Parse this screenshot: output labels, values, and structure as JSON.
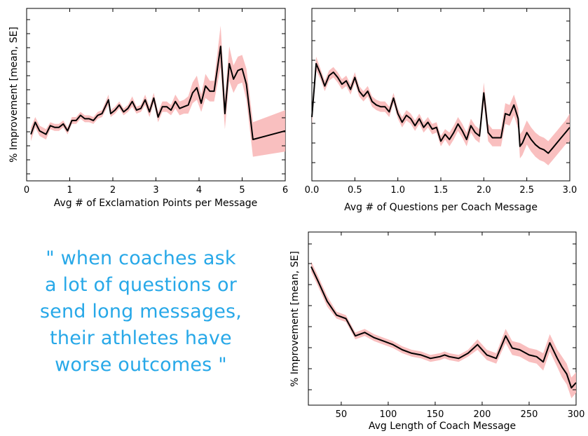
{
  "quote": {
    "lines": [
      "\" when coaches ask",
      "a lot of questions or",
      "send long messages,",
      "their athletes have",
      "worse outcomes \""
    ],
    "color": "#27a8e8"
  },
  "chart_data": [
    {
      "type": "line",
      "xlabel": "Avg # of Exclamation Points per Message",
      "ylabel": "% Improvement [mean, SE]",
      "xlim": [
        0,
        6
      ],
      "ylim": [
        0,
        1
      ],
      "xticks": [
        "0",
        "1",
        "2",
        "3",
        "4",
        "5",
        "6"
      ],
      "band_color": "#f8b8b8",
      "line_color": "#000000",
      "series": [
        {
          "x": [
            0.1,
            0.2,
            0.3,
            0.45,
            0.55,
            0.65,
            0.75,
            0.85,
            0.95,
            1.05,
            1.15,
            1.25,
            1.35,
            1.45,
            1.55,
            1.65,
            1.75,
            1.9,
            1.95,
            2.05,
            2.15,
            2.25,
            2.35,
            2.45,
            2.55,
            2.65,
            2.75,
            2.85,
            2.95,
            3.05,
            3.15,
            3.25,
            3.35,
            3.45,
            3.55,
            3.65,
            3.75,
            3.85,
            3.95,
            4.05,
            4.15,
            4.25,
            4.35,
            4.5,
            4.6,
            4.7,
            4.8,
            4.9,
            5.0,
            5.1,
            5.25,
            6.0
          ],
          "y": [
            0.27,
            0.34,
            0.29,
            0.27,
            0.32,
            0.31,
            0.31,
            0.33,
            0.29,
            0.35,
            0.35,
            0.38,
            0.36,
            0.36,
            0.35,
            0.38,
            0.39,
            0.47,
            0.39,
            0.41,
            0.44,
            0.4,
            0.42,
            0.46,
            0.41,
            0.42,
            0.47,
            0.4,
            0.48,
            0.37,
            0.43,
            0.43,
            0.41,
            0.46,
            0.42,
            0.43,
            0.44,
            0.51,
            0.54,
            0.45,
            0.55,
            0.52,
            0.52,
            0.78,
            0.39,
            0.68,
            0.59,
            0.64,
            0.65,
            0.56,
            0.24,
            0.29
          ],
          "se": [
            0.04,
            0.03,
            0.03,
            0.03,
            0.02,
            0.02,
            0.02,
            0.02,
            0.02,
            0.02,
            0.02,
            0.02,
            0.02,
            0.02,
            0.02,
            0.02,
            0.02,
            0.03,
            0.02,
            0.02,
            0.02,
            0.02,
            0.02,
            0.03,
            0.02,
            0.02,
            0.03,
            0.03,
            0.03,
            0.03,
            0.03,
            0.03,
            0.03,
            0.04,
            0.04,
            0.04,
            0.05,
            0.06,
            0.07,
            0.05,
            0.07,
            0.06,
            0.06,
            0.12,
            0.09,
            0.1,
            0.08,
            0.08,
            0.08,
            0.09,
            0.1,
            0.12
          ]
        }
      ]
    },
    {
      "type": "line",
      "xlabel": "Avg # of Questions per Coach Message",
      "ylabel": "",
      "xlim": [
        0,
        3.0
      ],
      "ylim": [
        0,
        1
      ],
      "xticks": [
        "0.0",
        "0.5",
        "1.0",
        "1.5",
        "2.0",
        "2.5",
        "3.0"
      ],
      "band_color": "#f8b8b8",
      "line_color": "#000000",
      "series": [
        {
          "x": [
            0.0,
            0.05,
            0.1,
            0.15,
            0.2,
            0.25,
            0.3,
            0.35,
            0.4,
            0.45,
            0.5,
            0.55,
            0.6,
            0.65,
            0.7,
            0.75,
            0.8,
            0.85,
            0.9,
            0.95,
            1.0,
            1.05,
            1.1,
            1.15,
            1.2,
            1.25,
            1.3,
            1.35,
            1.4,
            1.45,
            1.5,
            1.55,
            1.6,
            1.65,
            1.7,
            1.75,
            1.8,
            1.85,
            1.9,
            1.95,
            2.0,
            2.02,
            2.05,
            2.1,
            2.15,
            2.2,
            2.25,
            2.3,
            2.35,
            2.4,
            2.42,
            2.45,
            2.5,
            2.55,
            2.6,
            2.65,
            2.7,
            2.75,
            2.8,
            2.85,
            2.9,
            2.95,
            3.0
          ],
          "y": [
            0.37,
            0.68,
            0.62,
            0.55,
            0.61,
            0.63,
            0.6,
            0.56,
            0.58,
            0.53,
            0.6,
            0.52,
            0.49,
            0.52,
            0.46,
            0.44,
            0.43,
            0.43,
            0.4,
            0.48,
            0.39,
            0.34,
            0.38,
            0.36,
            0.32,
            0.36,
            0.31,
            0.34,
            0.3,
            0.31,
            0.23,
            0.27,
            0.24,
            0.28,
            0.33,
            0.29,
            0.24,
            0.32,
            0.28,
            0.26,
            0.51,
            0.42,
            0.28,
            0.25,
            0.25,
            0.25,
            0.39,
            0.38,
            0.44,
            0.36,
            0.2,
            0.22,
            0.28,
            0.24,
            0.21,
            0.19,
            0.18,
            0.16,
            0.19,
            0.22,
            0.25,
            0.28,
            0.31
          ],
          "se": [
            0.05,
            0.04,
            0.03,
            0.03,
            0.03,
            0.03,
            0.03,
            0.03,
            0.03,
            0.03,
            0.03,
            0.03,
            0.03,
            0.03,
            0.03,
            0.03,
            0.03,
            0.03,
            0.03,
            0.03,
            0.03,
            0.03,
            0.03,
            0.03,
            0.03,
            0.03,
            0.03,
            0.03,
            0.03,
            0.03,
            0.03,
            0.03,
            0.04,
            0.04,
            0.04,
            0.04,
            0.04,
            0.04,
            0.04,
            0.04,
            0.06,
            0.06,
            0.05,
            0.05,
            0.05,
            0.05,
            0.06,
            0.06,
            0.06,
            0.06,
            0.07,
            0.07,
            0.07,
            0.07,
            0.07,
            0.07,
            0.07,
            0.07,
            0.07,
            0.07,
            0.07,
            0.07,
            0.08
          ]
        }
      ]
    },
    {
      "type": "line",
      "xlabel": "Avg Length of Coach Message",
      "ylabel": "% Improvement [mean, SE]",
      "xlim": [
        15,
        300
      ],
      "ylim": [
        0,
        1
      ],
      "xticks": [
        "50",
        "100",
        "150",
        "200",
        "250",
        "300"
      ],
      "xtick_values": [
        50,
        100,
        150,
        200,
        250,
        300
      ],
      "band_color": "#f8b8b8",
      "line_color": "#000000",
      "series": [
        {
          "x": [
            18,
            25,
            35,
            45,
            55,
            65,
            75,
            85,
            95,
            105,
            115,
            125,
            135,
            140,
            145,
            155,
            160,
            165,
            175,
            185,
            195,
            205,
            215,
            225,
            232,
            240,
            250,
            258,
            265,
            272,
            280,
            285,
            290,
            295,
            300
          ],
          "y": [
            0.8,
            0.72,
            0.6,
            0.52,
            0.5,
            0.4,
            0.42,
            0.39,
            0.37,
            0.35,
            0.32,
            0.3,
            0.29,
            0.28,
            0.27,
            0.28,
            0.29,
            0.28,
            0.27,
            0.3,
            0.35,
            0.29,
            0.27,
            0.4,
            0.33,
            0.32,
            0.29,
            0.28,
            0.25,
            0.36,
            0.27,
            0.22,
            0.18,
            0.1,
            0.13
          ],
          "se": [
            0.03,
            0.03,
            0.03,
            0.02,
            0.02,
            0.02,
            0.02,
            0.02,
            0.02,
            0.02,
            0.02,
            0.02,
            0.02,
            0.02,
            0.02,
            0.02,
            0.02,
            0.02,
            0.02,
            0.02,
            0.03,
            0.03,
            0.03,
            0.04,
            0.04,
            0.04,
            0.04,
            0.04,
            0.05,
            0.05,
            0.05,
            0.06,
            0.06,
            0.06,
            0.06
          ]
        }
      ]
    }
  ]
}
